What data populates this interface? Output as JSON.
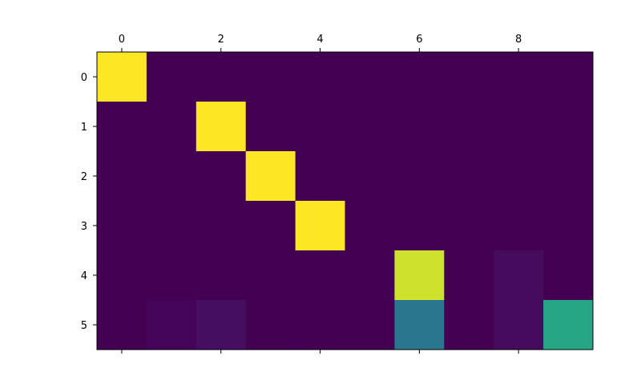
{
  "chart_data": {
    "type": "heatmap",
    "title": "",
    "xlabel": "",
    "ylabel": "",
    "colormap": "viridis",
    "grid": false,
    "x_range": [
      -0.5,
      9.5
    ],
    "y_range": [
      -0.5,
      5.5
    ],
    "x_ticks": [
      "0",
      "2",
      "4",
      "6",
      "8"
    ],
    "y_ticks": [
      "0",
      "1",
      "2",
      "3",
      "4",
      "5"
    ],
    "x_tick_positions": [
      0,
      2,
      4,
      6,
      8
    ],
    "y_tick_positions": [
      0,
      1,
      2,
      3,
      4,
      5
    ],
    "value_range": [
      0,
      1
    ],
    "values": [
      [
        1.0,
        0.0,
        0.0,
        0.0,
        0.0,
        0.0,
        0.0,
        0.0,
        0.0,
        0.0
      ],
      [
        0.0,
        0.0,
        1.0,
        0.0,
        0.0,
        0.0,
        0.0,
        0.0,
        0.0,
        0.0
      ],
      [
        0.0,
        0.0,
        0.0,
        1.0,
        0.0,
        0.0,
        0.0,
        0.0,
        0.0,
        0.0
      ],
      [
        0.0,
        0.0,
        0.0,
        0.0,
        1.0,
        0.0,
        0.0,
        0.0,
        0.0,
        0.0
      ],
      [
        0.0,
        0.0,
        0.0,
        0.0,
        0.0,
        0.0,
        0.93,
        0.0,
        0.03,
        0.0
      ],
      [
        0.0,
        0.01,
        0.04,
        0.0,
        0.0,
        0.0,
        0.4,
        0.0,
        0.03,
        0.6
      ]
    ]
  }
}
